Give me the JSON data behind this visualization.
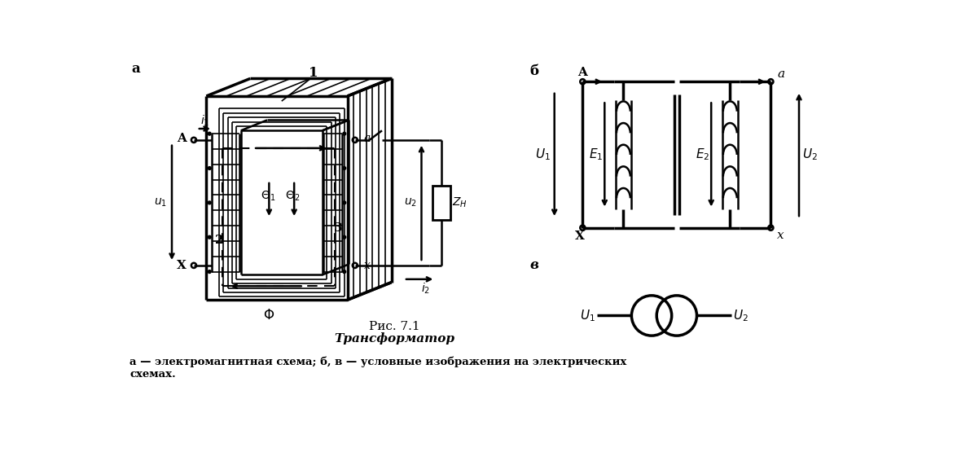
{
  "title": "Рис. 7.1",
  "subtitle": "Трансформатор",
  "caption_line1": "а — электромагнитная схема; б, в — условные изображения на электрических",
  "caption_line2": "схемах.",
  "bg_color": "#ffffff",
  "line_color": "#000000"
}
